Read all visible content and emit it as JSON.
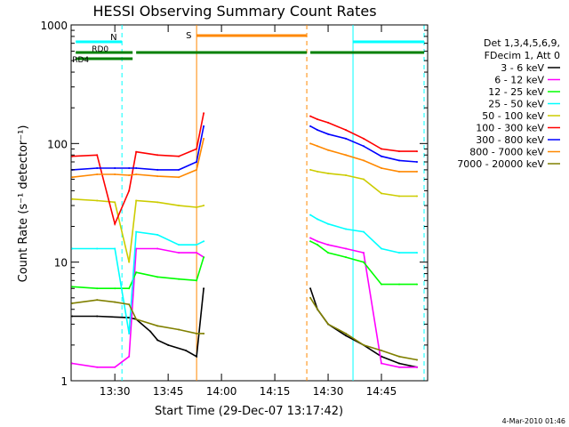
{
  "chart_data": {
    "type": "line",
    "title": "HESSI Observing Summary Count Rates",
    "xlabel": "Start Time (29-Dec-07 13:17:42)",
    "ylabel": "Count Rate (s⁻¹ detector⁻¹)",
    "yscale": "log",
    "ylim": [
      1,
      1000
    ],
    "xlim": [
      "13:17:42",
      "14:58:00"
    ],
    "xticks": [
      "13:30",
      "13:45",
      "14:00",
      "14:15",
      "14:30",
      "14:45"
    ],
    "yticks": [
      "1",
      "10",
      "100",
      "1000"
    ],
    "legend_header": [
      "Det 1,3,4,5,6,9,",
      "FDecim 1, Att 0"
    ],
    "legend_position": "right",
    "series": [
      {
        "name": "3 - 6 keV",
        "color": "#000000",
        "x": [
          "13:18",
          "13:25",
          "13:34",
          "13:36",
          "13:40",
          "13:42",
          "13:45",
          "13:50",
          "13:53",
          "13:55",
          "14:25",
          "14:27",
          "14:30",
          "14:35",
          "14:40",
          "14:45",
          "14:50",
          "14:55"
        ],
        "y": [
          3.5,
          3.5,
          3.4,
          3.3,
          2.6,
          2.2,
          2.0,
          1.8,
          1.6,
          6.0,
          6.0,
          4.0,
          3.0,
          2.4,
          2.0,
          1.6,
          1.4,
          1.3
        ]
      },
      {
        "name": "6 - 12 keV",
        "color": "#ff00ff",
        "x": [
          "13:18",
          "13:25",
          "13:30",
          "13:34",
          "13:36",
          "13:42",
          "13:48",
          "13:53",
          "13:55",
          "14:25",
          "14:27",
          "14:30",
          "14:35",
          "14:40",
          "14:45",
          "14:50",
          "14:55"
        ],
        "y": [
          1.4,
          1.3,
          1.3,
          1.6,
          13,
          13,
          12,
          12,
          11,
          16,
          15,
          14,
          13,
          12,
          1.4,
          1.3,
          1.3
        ]
      },
      {
        "name": "12 - 25 keV",
        "color": "#00ff00",
        "x": [
          "13:18",
          "13:25",
          "13:30",
          "13:34",
          "13:36",
          "13:42",
          "13:48",
          "13:53",
          "13:55",
          "14:25",
          "14:27",
          "14:30",
          "14:35",
          "14:40",
          "14:45",
          "14:50",
          "14:55"
        ],
        "y": [
          6.2,
          6.0,
          6.0,
          6.0,
          8.2,
          7.5,
          7.2,
          7.0,
          11,
          15,
          14,
          12,
          11,
          10,
          6.5,
          6.5,
          6.5
        ]
      },
      {
        "name": "25 - 50 keV",
        "color": "#00ffff",
        "x": [
          "13:18",
          "13:25",
          "13:30",
          "13:34",
          "13:36",
          "13:42",
          "13:48",
          "13:53",
          "13:55",
          "14:25",
          "14:27",
          "14:30",
          "14:35",
          "14:40",
          "14:45",
          "14:50",
          "14:55"
        ],
        "y": [
          13,
          13,
          13,
          2.5,
          18,
          17,
          14,
          14,
          15,
          25,
          23,
          21,
          19,
          18,
          13,
          12,
          12
        ]
      },
      {
        "name": "50 - 100 keV",
        "color": "#cccc00",
        "x": [
          "13:18",
          "13:25",
          "13:30",
          "13:34",
          "13:36",
          "13:42",
          "13:48",
          "13:53",
          "13:55",
          "14:25",
          "14:27",
          "14:30",
          "14:35",
          "14:40",
          "14:45",
          "14:50",
          "14:55"
        ],
        "y": [
          34,
          33,
          32,
          10,
          33,
          32,
          30,
          29,
          30,
          60,
          58,
          56,
          54,
          50,
          38,
          36,
          36
        ]
      },
      {
        "name": "100 - 300 keV",
        "color": "#ff0000",
        "x": [
          "13:18",
          "13:25",
          "13:30",
          "13:34",
          "13:36",
          "13:42",
          "13:48",
          "13:53",
          "13:55",
          "14:25",
          "14:27",
          "14:30",
          "14:35",
          "14:40",
          "14:45",
          "14:50",
          "14:55"
        ],
        "y": [
          78,
          80,
          21,
          40,
          85,
          80,
          78,
          90,
          180,
          170,
          160,
          150,
          130,
          110,
          90,
          86,
          86
        ]
      },
      {
        "name": "300 - 800 keV",
        "color": "#0000ff",
        "x": [
          "13:18",
          "13:25",
          "13:30",
          "13:34",
          "13:36",
          "13:42",
          "13:48",
          "13:53",
          "13:55",
          "14:25",
          "14:27",
          "14:30",
          "14:35",
          "14:40",
          "14:45",
          "14:50",
          "14:55"
        ],
        "y": [
          60,
          62,
          62,
          62,
          62,
          60,
          60,
          70,
          140,
          140,
          130,
          120,
          110,
          95,
          78,
          72,
          70
        ]
      },
      {
        "name": "800 - 7000 keV",
        "color": "#ff8800",
        "x": [
          "13:18",
          "13:25",
          "13:30",
          "13:34",
          "13:36",
          "13:42",
          "13:48",
          "13:53",
          "13:55",
          "14:25",
          "14:27",
          "14:30",
          "14:35",
          "14:40",
          "14:45",
          "14:50",
          "14:55"
        ],
        "y": [
          52,
          55,
          55,
          54,
          55,
          53,
          52,
          60,
          110,
          100,
          95,
          88,
          80,
          72,
          62,
          58,
          58
        ]
      },
      {
        "name": "7000 - 20000 keV",
        "color": "#808000",
        "x": [
          "13:18",
          "13:25",
          "13:30",
          "13:34",
          "13:36",
          "13:42",
          "13:48",
          "13:53",
          "13:55",
          "14:25",
          "14:27",
          "14:30",
          "14:35",
          "14:40",
          "14:45",
          "14:50",
          "14:55"
        ],
        "y": [
          4.5,
          4.8,
          4.6,
          4.4,
          3.3,
          2.9,
          2.7,
          2.5,
          2.5,
          5.0,
          4.0,
          3.0,
          2.5,
          2.0,
          1.8,
          1.6,
          1.5
        ]
      }
    ],
    "flag_labels": {
      "n": "N",
      "s": "S",
      "rd0": "RD0",
      "rd4": "RD4"
    },
    "timestamp": "4-Mar-2010 01:46"
  }
}
